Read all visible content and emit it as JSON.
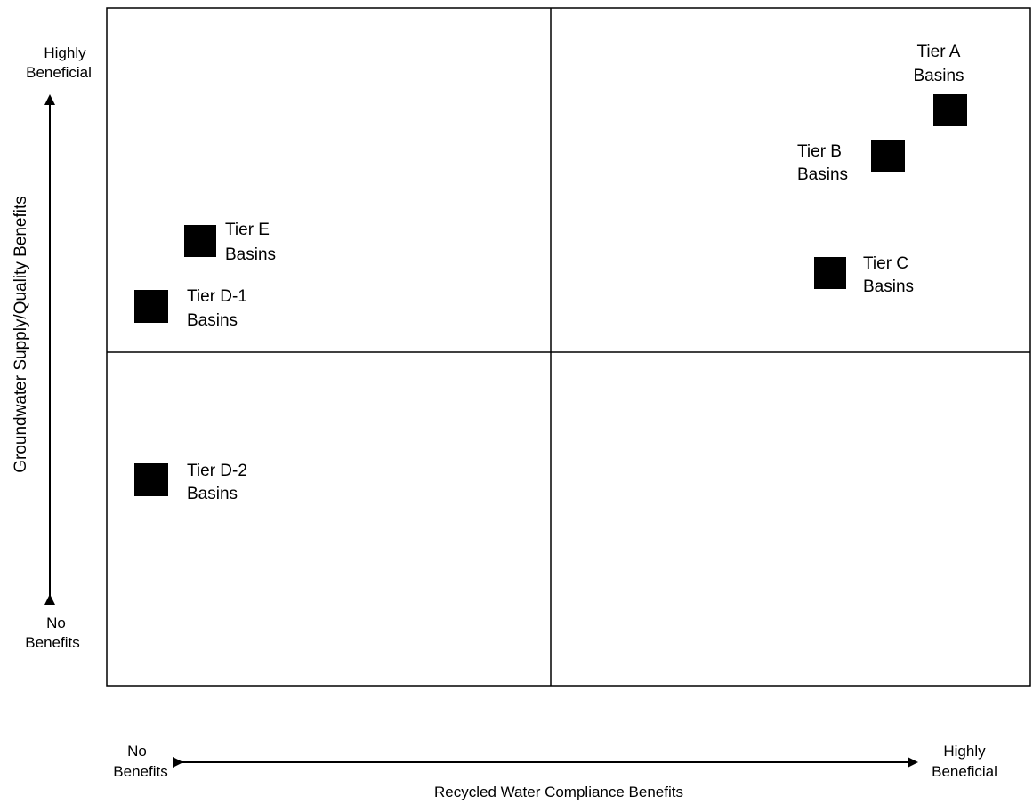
{
  "y_axis": {
    "title": "Groundwater Supply/Quality Benefits",
    "top_label": [
      "Highly",
      "Beneficial"
    ],
    "bottom_label": [
      "No",
      "Benefits"
    ]
  },
  "x_axis": {
    "title": "Recycled Water Compliance Benefits",
    "left_label": [
      "No",
      "Benefits"
    ],
    "right_label": [
      "Highly",
      "Beneficial"
    ]
  },
  "tiers": [
    {
      "id": "A",
      "label": [
        "Tier A",
        "Basins"
      ]
    },
    {
      "id": "B",
      "label": [
        "Tier B",
        "Basins"
      ]
    },
    {
      "id": "C",
      "label": [
        "Tier C",
        "Basins"
      ]
    },
    {
      "id": "E",
      "label": [
        "Tier E",
        "Basins"
      ]
    },
    {
      "id": "D-1",
      "label": [
        "Tier D-1",
        "Basins"
      ]
    },
    {
      "id": "D-2",
      "label": [
        "Tier D-2",
        "Basins"
      ]
    }
  ],
  "colors": {
    "marker": "#000000",
    "line": "#000000",
    "background": "#ffffff"
  }
}
